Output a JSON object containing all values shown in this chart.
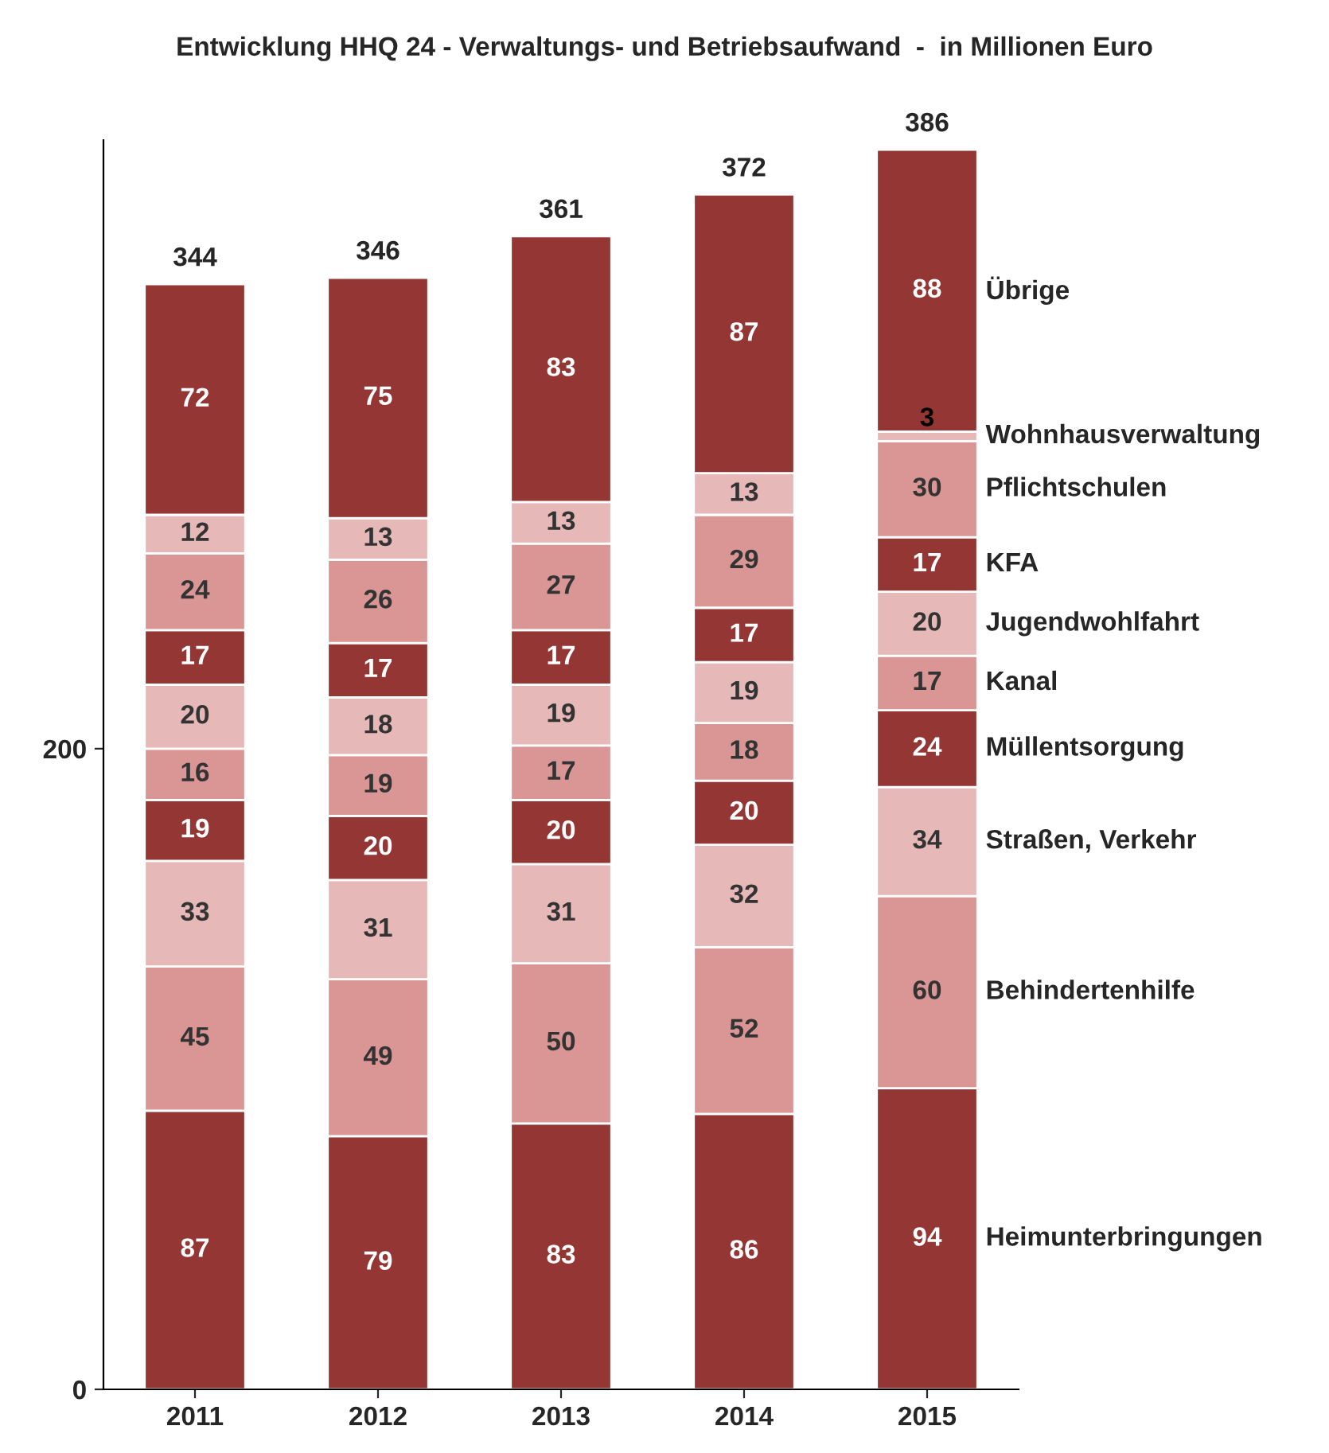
{
  "chart_data": {
    "type": "bar",
    "title": "Entwicklung HHQ 24 - Verwaltungs- und Betriebsaufwand  -  in Millionen Euro",
    "categories": [
      "2011",
      "2012",
      "2013",
      "2014",
      "2015"
    ],
    "stacked": true,
    "data_labels": true,
    "legend": "right",
    "grid": false,
    "ylim": [
      0,
      390
    ],
    "yticks": [
      0,
      200
    ],
    "totals": [
      "344",
      "346",
      "361",
      "372",
      "386"
    ],
    "series": [
      {
        "name": "Heimunterbringungen",
        "color": "#943634",
        "values": [
          87,
          79,
          83,
          86,
          94
        ]
      },
      {
        "name": "Behindertenhilfe",
        "color": "#d99694",
        "values": [
          45,
          49,
          50,
          52,
          60
        ]
      },
      {
        "name": "Straßen, Verkehr",
        "color": "#e6b9b8",
        "values": [
          33,
          31,
          31,
          32,
          34
        ]
      },
      {
        "name": "Müllentsorgung",
        "color": "#943634",
        "values": [
          19,
          20,
          20,
          20,
          24
        ]
      },
      {
        "name": "Kanal",
        "color": "#d99694",
        "values": [
          16,
          19,
          17,
          18,
          17
        ]
      },
      {
        "name": "Jugendwohlfahrt",
        "color": "#e6b9b8",
        "values": [
          20,
          18,
          19,
          19,
          20
        ]
      },
      {
        "name": "KFA",
        "color": "#943634",
        "values": [
          17,
          17,
          17,
          17,
          17
        ]
      },
      {
        "name": "Pflichtschulen",
        "color": "#d99694",
        "values": [
          24,
          26,
          27,
          29,
          30
        ]
      },
      {
        "name": "Wohnhausverwaltung",
        "color": "#e6b9b8",
        "values": [
          12,
          13,
          13,
          13,
          3
        ]
      },
      {
        "name": "Übrige",
        "color": "#943634",
        "values": [
          72,
          75,
          83,
          87,
          88
        ]
      }
    ]
  }
}
